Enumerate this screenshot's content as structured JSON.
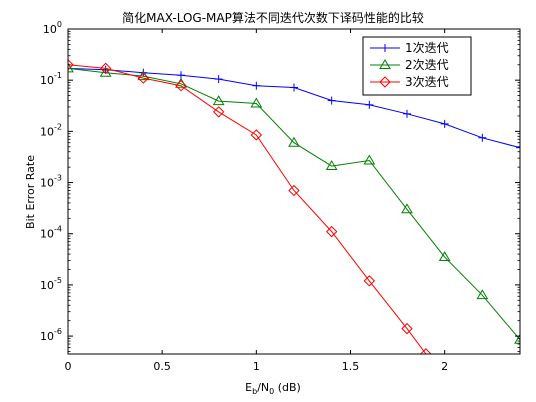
{
  "chart_data": {
    "type": "line",
    "title": "简化MAX-LOG-MAP算法不同迭代次数下译码性能的比较",
    "xlabel_main": "E",
    "xlabel_sub1": "b",
    "xlabel_mid": "/N",
    "xlabel_sub2": "0",
    "xlabel_tail": " (dB)",
    "ylabel": "Bit Error Rate",
    "xlim": [
      0,
      2.4
    ],
    "ylim_log10": [
      -6.35,
      0
    ],
    "yscale": "log",
    "grid": false,
    "legend_position": "top-right",
    "x_ticks": [
      0,
      0.5,
      1,
      1.5,
      2
    ],
    "x_tick_labels": [
      "0",
      "0.5",
      "1",
      "1.5",
      "2"
    ],
    "y_tick_exponents": [
      "0",
      "-1",
      "-2",
      "-3",
      "-4",
      "-5",
      "-6"
    ],
    "y_tick_base": "10",
    "series": [
      {
        "name": "1次迭代",
        "color": "#0000ff",
        "marker": "plus",
        "x": [
          0,
          0.2,
          0.4,
          0.6,
          0.8,
          1.0,
          1.2,
          1.4,
          1.6,
          1.8,
          2.0,
          2.2,
          2.4
        ],
        "y": [
          0.17,
          0.16,
          0.14,
          0.125,
          0.105,
          0.078,
          0.072,
          0.04,
          0.033,
          0.022,
          0.014,
          0.0075,
          0.0048
        ]
      },
      {
        "name": "2次迭代",
        "color": "#008000",
        "marker": "triangle",
        "x": [
          0,
          0.2,
          0.4,
          0.6,
          0.8,
          1.0,
          1.2,
          1.4,
          1.6,
          1.8,
          2.0,
          2.2,
          2.4
        ],
        "y": [
          0.17,
          0.14,
          0.12,
          0.085,
          0.039,
          0.035,
          0.006,
          0.0021,
          0.0027,
          0.0003,
          3.5e-05,
          6.3e-06,
          8.5e-07
        ]
      },
      {
        "name": "3次迭代",
        "color": "#ff0000",
        "marker": "diamond",
        "x": [
          0,
          0.2,
          0.4,
          0.6,
          0.8,
          1.0,
          1.2,
          1.4,
          1.6,
          1.8,
          1.9
        ],
        "y": [
          0.2,
          0.17,
          0.11,
          0.078,
          0.024,
          0.0085,
          0.0007,
          0.00011,
          1.2e-05,
          1.4e-06,
          4.5e-07
        ]
      }
    ]
  }
}
